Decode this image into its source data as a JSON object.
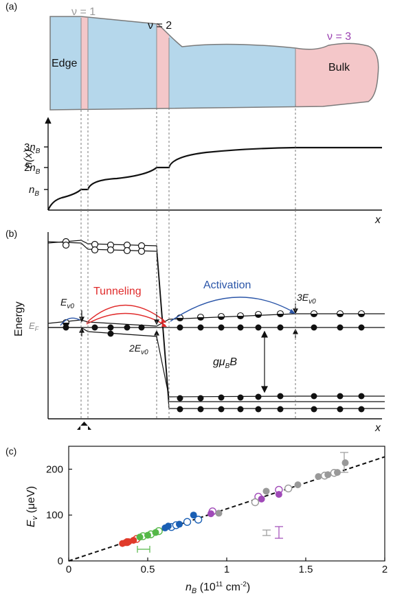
{
  "panel_a": {
    "panel_label": "(a)",
    "nu1": "ν = 1",
    "nu2": "ν = 2",
    "nu3": "ν = 3",
    "edge": "Edge",
    "bulk": "Bulk",
    "ylabel": "n(x)",
    "yticks": [
      "n_B",
      "2n_B",
      "3n_B"
    ],
    "xlabel": "x",
    "colors": {
      "bulk_blue": "#b5d7eb",
      "stripe_pink": "#f4c7c9",
      "nu1_gray": "#9a9a9a",
      "nu3_purple": "#9a3fb0"
    }
  },
  "panel_b": {
    "panel_label": "(b)",
    "ylabel": "Energy",
    "ef": "E_F",
    "ev0": "E_v0",
    "two_ev0": "2E_v0",
    "three_ev0": "3E_v0",
    "tunneling": "Tunneling",
    "activation": "Activation",
    "zeeman": "gμ_B B",
    "xlabel": "x",
    "colors": {
      "tunneling_red": "#e02a2a",
      "activation_blue": "#2a55a8"
    }
  },
  "panel_c": {
    "panel_label": "(c)",
    "chart_data": {
      "type": "scatter",
      "xlabel": "n_B (10^11 cm^-2)",
      "ylabel": "E_v (μeV)",
      "xlim": [
        0,
        2
      ],
      "ylim": [
        0,
        250
      ],
      "xticks": [
        "0",
        "0.5",
        "1",
        "1.5",
        "2"
      ],
      "yticks": [
        "0",
        "100",
        "200"
      ],
      "fit_line": {
        "style": "dashed",
        "x": [
          0,
          2
        ],
        "y": [
          0,
          227
        ]
      },
      "series": [
        {
          "color": "#e03a2a",
          "filled": [
            [
              0.34,
              38
            ],
            [
              0.36,
              40
            ],
            [
              0.38,
              42
            ],
            [
              0.41,
              45
            ]
          ],
          "open": [
            [
              0.37,
              41
            ],
            [
              0.43,
              48
            ]
          ]
        },
        {
          "color": "#55b848",
          "filled": [
            [
              0.45,
              52
            ],
            [
              0.5,
              56
            ],
            [
              0.55,
              62
            ]
          ],
          "open": [
            [
              0.47,
              54
            ],
            [
              0.52,
              58
            ],
            [
              0.57,
              65
            ]
          ]
        },
        {
          "color": "#1a5fb4",
          "filled": [
            [
              0.61,
              72
            ],
            [
              0.63,
              76
            ],
            [
              0.7,
              80
            ],
            [
              0.79,
              100
            ]
          ],
          "open": [
            [
              0.65,
              74
            ],
            [
              0.68,
              78
            ],
            [
              0.75,
              85
            ],
            [
              0.82,
              90
            ]
          ]
        },
        {
          "color": "#a04ab8",
          "filled": [
            [
              0.9,
              103
            ],
            [
              1.22,
              135
            ],
            [
              1.33,
              145
            ]
          ],
          "open": [
            [
              0.91,
              108
            ],
            [
              1.2,
              140
            ],
            [
              1.33,
              155
            ]
          ]
        },
        {
          "color": "#999999",
          "filled": [
            [
              0.95,
              104
            ],
            [
              1.25,
              152
            ],
            [
              1.45,
              166
            ],
            [
              1.58,
              184
            ],
            [
              1.64,
              188
            ],
            [
              1.7,
              193
            ],
            [
              1.75,
              214
            ]
          ],
          "open": [
            [
              1.18,
              128
            ],
            [
              1.39,
              158
            ],
            [
              1.62,
              186
            ],
            [
              1.68,
              192
            ]
          ]
        }
      ]
    }
  }
}
